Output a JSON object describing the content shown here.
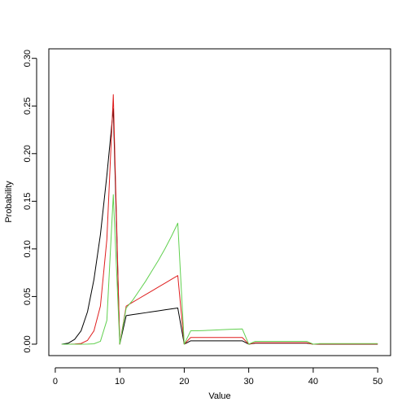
{
  "chart_data": {
    "type": "line",
    "title": "",
    "xlabel": "Value",
    "ylabel": "Probability",
    "xlim": [
      -1,
      52
    ],
    "ylim": [
      -0.012,
      0.31
    ],
    "xticks": [
      "0",
      "10",
      "20",
      "30",
      "40",
      "50"
    ],
    "yticks": [
      "0.00",
      "0.05",
      "0.10",
      "0.15",
      "0.20",
      "0.25",
      "0.30"
    ],
    "grid": false,
    "legend": "none",
    "x": [
      1,
      2,
      3,
      4,
      5,
      6,
      7,
      8,
      9,
      10,
      11,
      12,
      13,
      14,
      15,
      16,
      17,
      18,
      19,
      20,
      21,
      22,
      23,
      24,
      25,
      26,
      27,
      28,
      29,
      30,
      31,
      32,
      33,
      34,
      35,
      36,
      37,
      38,
      39,
      40,
      41,
      42,
      43,
      44,
      45,
      46,
      47,
      48,
      49,
      50
    ],
    "series": [
      {
        "color": "#000000",
        "values": [
          0.0,
          0.001,
          0.005,
          0.014,
          0.034,
          0.068,
          0.115,
          0.177,
          0.247,
          0.0,
          0.03,
          0.031,
          0.032,
          0.033,
          0.034,
          0.035,
          0.036,
          0.037,
          0.038,
          0.0,
          0.0035,
          0.0035,
          0.0035,
          0.0035,
          0.0035,
          0.0035,
          0.0035,
          0.0035,
          0.0035,
          0.0,
          0.001,
          0.001,
          0.001,
          0.001,
          0.001,
          0.001,
          0.001,
          0.001,
          0.001,
          0.0,
          0.0,
          0.0,
          0.0,
          0.0,
          0.0,
          0.0,
          0.0,
          0.0,
          0.0,
          0.0
        ]
      },
      {
        "color": "#df1f1f",
        "values": [
          0.0,
          0.0,
          0.0002,
          0.0007,
          0.004,
          0.014,
          0.04,
          0.11,
          0.262,
          0.0,
          0.04,
          0.044,
          0.048,
          0.052,
          0.056,
          0.06,
          0.064,
          0.068,
          0.072,
          0.0,
          0.007,
          0.007,
          0.007,
          0.007,
          0.007,
          0.007,
          0.007,
          0.007,
          0.007,
          0.0,
          0.0015,
          0.0015,
          0.0015,
          0.0015,
          0.0015,
          0.0015,
          0.0015,
          0.0015,
          0.0015,
          0.0,
          0.0002,
          0.0002,
          0.0002,
          0.0002,
          0.0002,
          0.0002,
          0.0002,
          0.0002,
          0.0002,
          0.0002
        ]
      },
      {
        "color": "#61d04f",
        "values": [
          0.0,
          0.0,
          0.0,
          0.0,
          0.0001,
          0.0004,
          0.003,
          0.025,
          0.157,
          0.0,
          0.038,
          0.046,
          0.056,
          0.066,
          0.077,
          0.088,
          0.1,
          0.113,
          0.127,
          0.0,
          0.014,
          0.014,
          0.0143,
          0.0146,
          0.0149,
          0.0152,
          0.0155,
          0.0158,
          0.016,
          0.0,
          0.003,
          0.003,
          0.003,
          0.003,
          0.003,
          0.003,
          0.003,
          0.003,
          0.003,
          0.0,
          0.0006,
          0.0006,
          0.0006,
          0.0006,
          0.0006,
          0.0006,
          0.0006,
          0.0006,
          0.0006,
          0.0006
        ]
      }
    ]
  }
}
